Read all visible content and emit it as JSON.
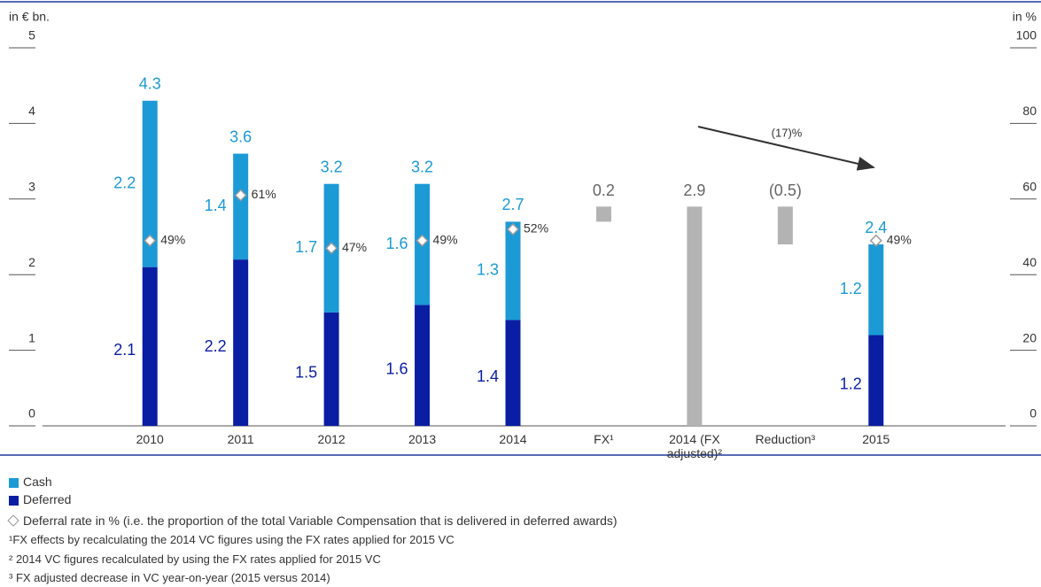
{
  "chart_data": {
    "type": "stacked_waterfall",
    "y_label": "in € bn.",
    "y2_label": "in %",
    "categories": [
      "2010",
      "2011",
      "2012",
      "2013",
      "2014",
      "FX¹",
      "2014 (FX adjusted)²",
      "Reduction³",
      "2015"
    ],
    "series": [
      {
        "name": "Cash",
        "color": "#1b9ad6",
        "values": [
          2.2,
          1.4,
          1.7,
          1.6,
          1.3,
          null,
          null,
          null,
          1.2
        ]
      },
      {
        "name": "Deferred",
        "color": "#0a1ea3",
        "values": [
          2.1,
          2.2,
          1.5,
          1.6,
          1.4,
          null,
          null,
          null,
          1.2
        ]
      },
      {
        "name": "Deferral rate in % (i.e. the proportion of the total Variable Compensation that is delivered in deferred awards)",
        "axis": "y2",
        "marker": "diamond",
        "values": [
          49,
          61,
          47,
          49,
          52,
          null,
          null,
          null,
          49
        ],
        "value_labels": [
          "49%",
          "61%",
          "47%",
          "49%",
          "52%",
          null,
          null,
          null,
          "49%"
        ]
      }
    ],
    "totals": [
      4.3,
      3.6,
      3.2,
      3.2,
      2.7,
      null,
      null,
      null,
      2.4
    ],
    "totals_color": "#1b9ad6",
    "waterfall": {
      "color": "#b3b3b3",
      "values": [
        null,
        null,
        null,
        null,
        null,
        0.2,
        2.9,
        -0.5,
        null
      ],
      "value_labels": [
        null,
        null,
        null,
        null,
        null,
        "0.2",
        "2.9",
        "(0.5)",
        null
      ]
    },
    "annotation": "(17)%",
    "ylim": [
      0,
      5
    ],
    "yticks": [
      0,
      1,
      2,
      3,
      4,
      5
    ],
    "y2lim": [
      0,
      100
    ],
    "y2ticks": [
      0,
      20,
      40,
      60,
      80,
      100
    ],
    "footnotes": [
      "¹FX effects by recalculating the 2014 VC figures using the FX rates applied for 2015 VC",
      "² 2014 VC figures recalculated by using the FX rates applied for 2015 VC",
      "³ FX adjusted decrease in VC year-on-year (2015 versus 2014)"
    ]
  }
}
